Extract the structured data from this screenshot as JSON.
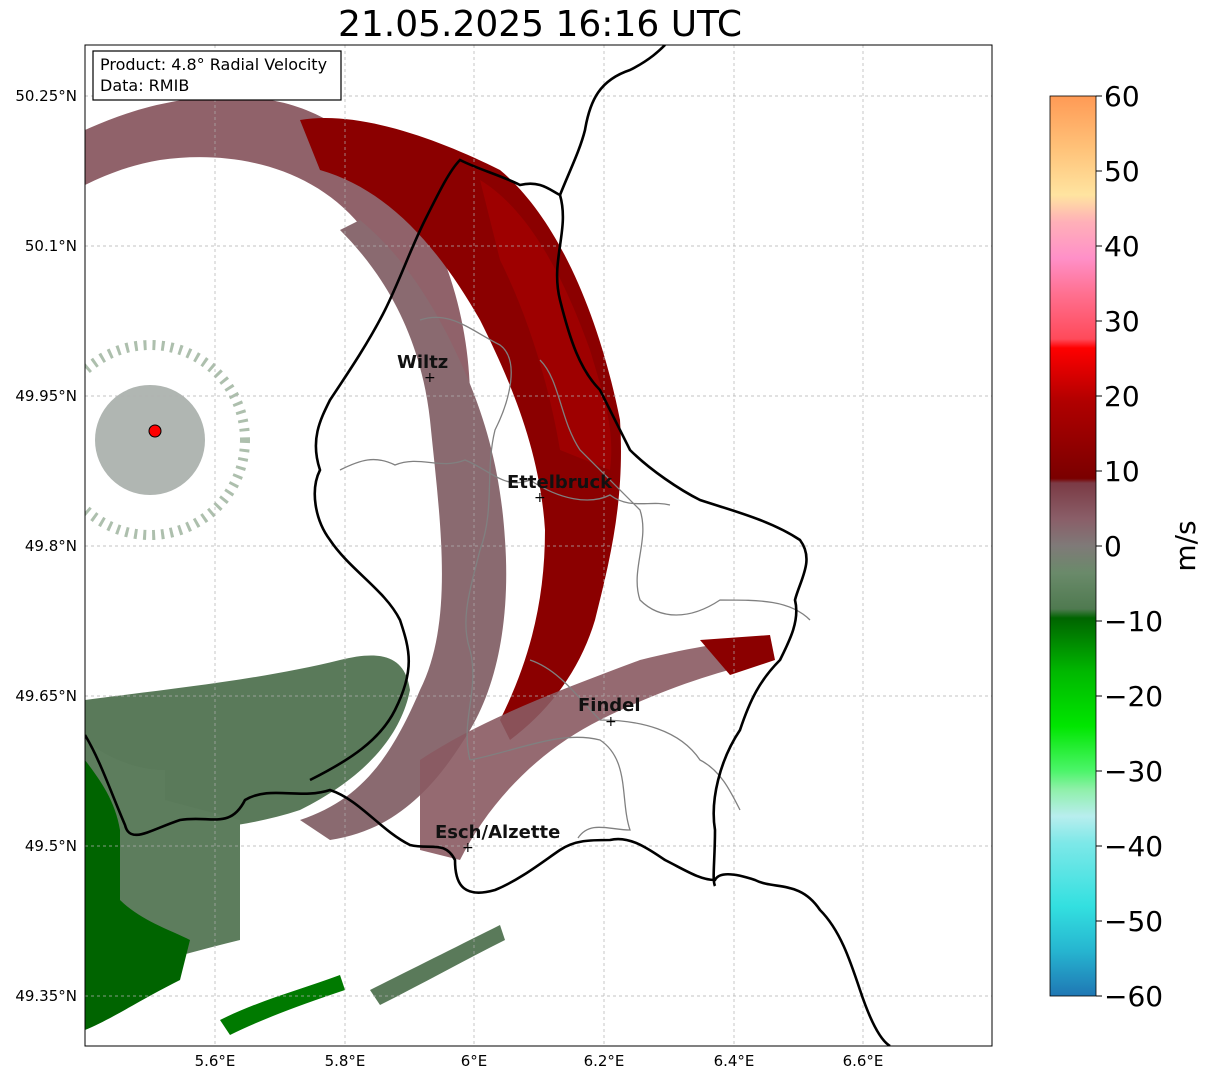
{
  "title": "21.05.2025 16:16 UTC",
  "info": {
    "product": "Product: 4.8° Radial Velocity",
    "source": "Data: RMIB"
  },
  "axes": {
    "x_ticks": [
      "5.6°E",
      "5.8°E",
      "6°E",
      "6.2°E",
      "6.4°E",
      "6.6°E"
    ],
    "y_ticks": [
      "50.25°N",
      "50.1°N",
      "49.95°N",
      "49.8°N",
      "49.65°N",
      "49.5°N",
      "49.35°N"
    ],
    "x_range": [
      5.4,
      6.78
    ],
    "y_range": [
      49.3,
      50.3
    ]
  },
  "cities": [
    {
      "name": "Wiltz",
      "lon": 5.93,
      "lat": 49.97
    },
    {
      "name": "Ettelbruck",
      "lon": 6.1,
      "lat": 49.85
    },
    {
      "name": "Findel",
      "lon": 6.21,
      "lat": 49.63
    },
    {
      "name": "Esch/Alzette",
      "lon": 5.99,
      "lat": 49.5
    }
  ],
  "radar": {
    "lon": 5.505,
    "lat": 49.915
  },
  "colorbar": {
    "label": "m/s",
    "min": -60,
    "max": 60,
    "ticks": [
      "60",
      "50",
      "40",
      "30",
      "20",
      "10",
      "0",
      "−10",
      "−20",
      "−30",
      "−40",
      "−50",
      "−60"
    ]
  },
  "colors": {
    "strong_inbound": "#8b0000",
    "weak_inbound": "#8a5a62",
    "near_zero": "#6f7a72",
    "weak_outbound": "#5a7a5a",
    "strong_outbound": "#006400",
    "radar_site": "#ff0000",
    "border": "#000000",
    "district": "#808080"
  }
}
